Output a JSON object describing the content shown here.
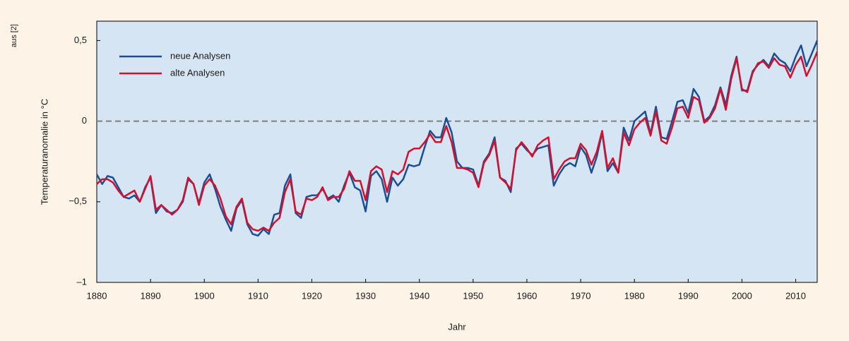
{
  "chart_data": {
    "type": "line",
    "source_note": "aus [2]",
    "xlabel": "Jahr",
    "ylabel": "Temperaturanomalie in °C",
    "legend": "top-left",
    "zero_line": true,
    "xlim": [
      1880,
      2014
    ],
    "xticks": [
      1880,
      1890,
      1900,
      1910,
      1920,
      1930,
      1940,
      1950,
      1960,
      1970,
      1980,
      1990,
      2000,
      2010
    ],
    "ylim": [
      -1,
      0.62
    ],
    "yticks": [
      {
        "value": -1,
        "label": "–1"
      },
      {
        "value": -0.5,
        "label": "−0,5"
      },
      0,
      {
        "value": 0.5,
        "label": "0,5"
      }
    ],
    "x": [
      1880,
      1881,
      1882,
      1883,
      1884,
      1885,
      1886,
      1887,
      1888,
      1889,
      1890,
      1891,
      1892,
      1893,
      1894,
      1895,
      1896,
      1897,
      1898,
      1899,
      1900,
      1901,
      1902,
      1903,
      1904,
      1905,
      1906,
      1907,
      1908,
      1909,
      1910,
      1911,
      1912,
      1913,
      1914,
      1915,
      1916,
      1917,
      1918,
      1919,
      1920,
      1921,
      1922,
      1923,
      1924,
      1925,
      1926,
      1927,
      1928,
      1929,
      1930,
      1931,
      1932,
      1933,
      1934,
      1935,
      1936,
      1937,
      1938,
      1939,
      1940,
      1941,
      1942,
      1943,
      1944,
      1945,
      1946,
      1947,
      1948,
      1949,
      1950,
      1951,
      1952,
      1953,
      1954,
      1955,
      1956,
      1957,
      1958,
      1959,
      1960,
      1961,
      1962,
      1963,
      1964,
      1965,
      1966,
      1967,
      1968,
      1969,
      1970,
      1971,
      1972,
      1973,
      1974,
      1975,
      1976,
      1977,
      1978,
      1979,
      1980,
      1981,
      1982,
      1983,
      1984,
      1985,
      1986,
      1987,
      1988,
      1989,
      1990,
      1991,
      1992,
      1993,
      1994,
      1995,
      1996,
      1997,
      1998,
      1999,
      2000,
      2001,
      2002,
      2003,
      2004,
      2005,
      2006,
      2007,
      2008,
      2009,
      2010,
      2011,
      2012,
      2013,
      2014
    ],
    "series": [
      {
        "name": "neue Analysen",
        "color": "#1a4f96",
        "values": [
          -0.33,
          -0.39,
          -0.34,
          -0.35,
          -0.41,
          -0.47,
          -0.48,
          -0.46,
          -0.5,
          -0.41,
          -0.35,
          -0.57,
          -0.52,
          -0.56,
          -0.57,
          -0.55,
          -0.5,
          -0.36,
          -0.39,
          -0.51,
          -0.38,
          -0.33,
          -0.42,
          -0.53,
          -0.61,
          -0.68,
          -0.54,
          -0.49,
          -0.64,
          -0.7,
          -0.71,
          -0.67,
          -0.7,
          -0.58,
          -0.57,
          -0.4,
          -0.33,
          -0.57,
          -0.6,
          -0.47,
          -0.46,
          -0.46,
          -0.42,
          -0.48,
          -0.46,
          -0.5,
          -0.4,
          -0.32,
          -0.41,
          -0.43,
          -0.56,
          -0.34,
          -0.31,
          -0.36,
          -0.5,
          -0.35,
          -0.4,
          -0.36,
          -0.27,
          -0.28,
          -0.27,
          -0.16,
          -0.06,
          -0.1,
          -0.1,
          0.02,
          -0.07,
          -0.25,
          -0.29,
          -0.29,
          -0.3,
          -0.4,
          -0.25,
          -0.2,
          -0.1,
          -0.35,
          -0.37,
          -0.44,
          -0.17,
          -0.14,
          -0.18,
          -0.21,
          -0.17,
          -0.16,
          -0.15,
          -0.4,
          -0.33,
          -0.28,
          -0.26,
          -0.28,
          -0.16,
          -0.21,
          -0.32,
          -0.22,
          -0.07,
          -0.31,
          -0.26,
          -0.32,
          -0.04,
          -0.12,
          0.0,
          0.03,
          0.06,
          -0.08,
          0.09,
          -0.1,
          -0.11,
          0.0,
          0.12,
          0.13,
          0.05,
          0.2,
          0.15,
          0.0,
          0.03,
          0.1,
          0.21,
          0.1,
          0.28,
          0.4,
          0.19,
          0.19,
          0.31,
          0.35,
          0.38,
          0.34,
          0.42,
          0.38,
          0.36,
          0.31,
          0.4,
          0.47,
          0.34,
          0.42,
          0.5
        ]
      },
      {
        "name": "alte Analysen",
        "color": "#d4102c",
        "values": [
          -0.39,
          -0.36,
          -0.36,
          -0.38,
          -0.43,
          -0.47,
          -0.45,
          -0.43,
          -0.5,
          -0.42,
          -0.34,
          -0.55,
          -0.52,
          -0.55,
          -0.58,
          -0.55,
          -0.49,
          -0.35,
          -0.39,
          -0.52,
          -0.4,
          -0.36,
          -0.4,
          -0.48,
          -0.59,
          -0.64,
          -0.53,
          -0.48,
          -0.63,
          -0.67,
          -0.68,
          -0.66,
          -0.68,
          -0.63,
          -0.6,
          -0.44,
          -0.36,
          -0.56,
          -0.58,
          -0.48,
          -0.49,
          -0.47,
          -0.41,
          -0.49,
          -0.47,
          -0.47,
          -0.42,
          -0.31,
          -0.37,
          -0.37,
          -0.49,
          -0.31,
          -0.28,
          -0.3,
          -0.44,
          -0.31,
          -0.33,
          -0.3,
          -0.19,
          -0.17,
          -0.17,
          -0.13,
          -0.08,
          -0.13,
          -0.13,
          -0.03,
          -0.13,
          -0.29,
          -0.29,
          -0.3,
          -0.32,
          -0.41,
          -0.26,
          -0.21,
          -0.12,
          -0.35,
          -0.38,
          -0.42,
          -0.18,
          -0.13,
          -0.17,
          -0.22,
          -0.15,
          -0.12,
          -0.1,
          -0.36,
          -0.3,
          -0.25,
          -0.23,
          -0.23,
          -0.14,
          -0.18,
          -0.27,
          -0.19,
          -0.06,
          -0.29,
          -0.23,
          -0.32,
          -0.07,
          -0.15,
          -0.05,
          -0.01,
          0.02,
          -0.09,
          0.06,
          -0.12,
          -0.14,
          -0.04,
          0.08,
          0.09,
          0.02,
          0.15,
          0.13,
          -0.01,
          0.02,
          0.08,
          0.2,
          0.07,
          0.26,
          0.39,
          0.2,
          0.18,
          0.3,
          0.36,
          0.37,
          0.33,
          0.39,
          0.35,
          0.34,
          0.27,
          0.35,
          0.4,
          0.28,
          0.35,
          0.43
        ]
      }
    ]
  }
}
